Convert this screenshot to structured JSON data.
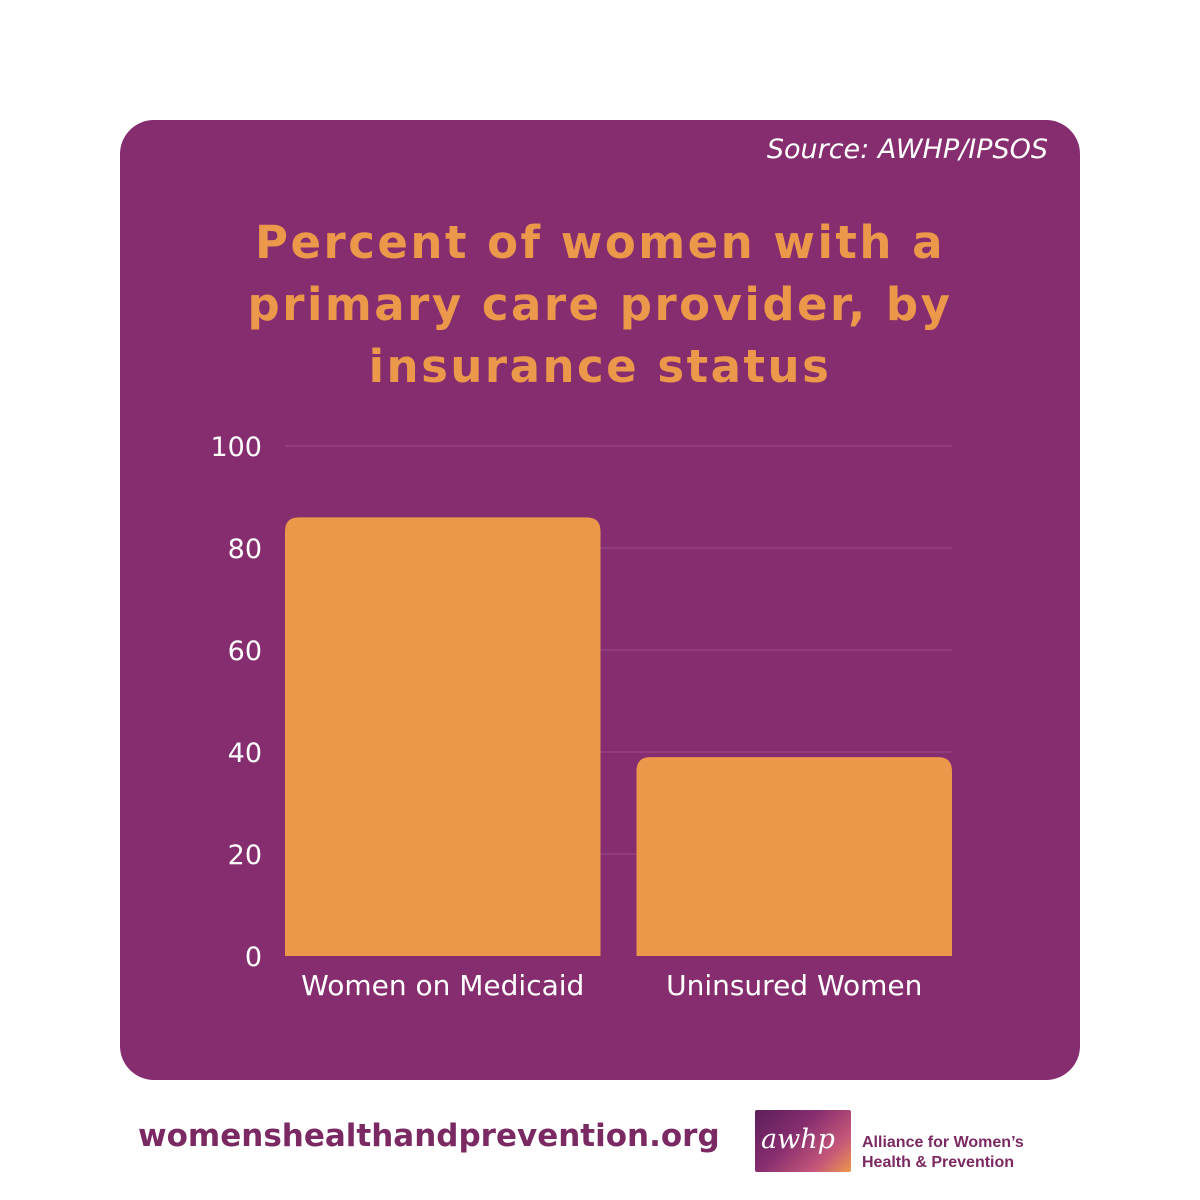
{
  "source": "Source: AWHP/IPSOS",
  "footer": {
    "url": "womenshealthandprevention.org",
    "logo_mark": "awhp",
    "org_name_line1": "Alliance for Women’s",
    "org_name_line2": "Health & Prevention"
  },
  "colors": {
    "card_bg": "#862d6f",
    "bar": "#eb984b",
    "title": "#eb984b",
    "footer_text": "#7b2962"
  },
  "chart_data": {
    "type": "bar",
    "title": "Percent of women with a primary care provider, by insurance status",
    "categories": [
      "Women on Medicaid",
      "Uninsured Women"
    ],
    "values": [
      86,
      39
    ],
    "yticks": [
      0,
      20,
      40,
      60,
      80,
      100
    ],
    "ylim": [
      0,
      100
    ],
    "xlabel": "",
    "ylabel": "",
    "grid": true,
    "legend": "none"
  }
}
